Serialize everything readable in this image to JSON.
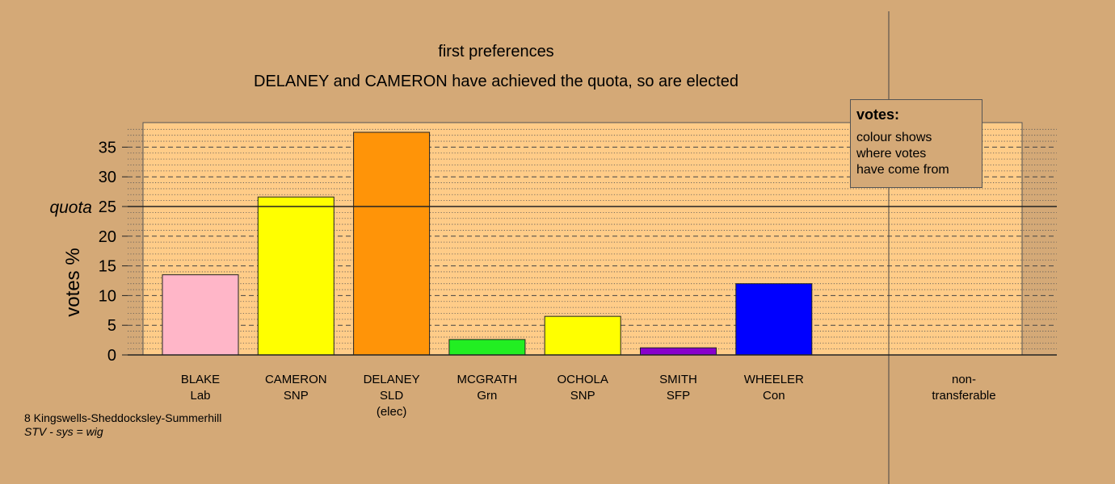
{
  "chart_data": {
    "type": "bar",
    "title": "first preferences",
    "subtitle": "DELANEY and CAMERON have achieved the quota, so are elected",
    "ylabel": "votes %",
    "ylim": [
      0,
      39
    ],
    "yticks": [
      0,
      5,
      10,
      15,
      20,
      25,
      30,
      35
    ],
    "quota": 25,
    "quota_label": "quota",
    "categories": [
      {
        "name": "BLAKE",
        "party": "Lab",
        "note": "",
        "value": 13.5,
        "color": "#ffb6c8"
      },
      {
        "name": "CAMERON",
        "party": "SNP",
        "note": "",
        "value": 26.6,
        "color": "#ffff00"
      },
      {
        "name": "DELANEY",
        "party": "SLD",
        "note": "(elec)",
        "value": 37.5,
        "color": "#ff9408"
      },
      {
        "name": "MCGRATH",
        "party": "Grn",
        "note": "",
        "value": 2.6,
        "color": "#22ee22"
      },
      {
        "name": "OCHOLA",
        "party": "SNP",
        "note": "",
        "value": 6.5,
        "color": "#ffff00"
      },
      {
        "name": "SMITH",
        "party": "SFP",
        "note": "",
        "value": 1.2,
        "color": "#8800cc"
      },
      {
        "name": "WHEELER",
        "party": "Con",
        "note": "",
        "value": 12.0,
        "color": "#0000ff"
      }
    ],
    "non_transferable": {
      "line1": "non-",
      "line2": "transferable",
      "value": 0
    },
    "plot_background": "#ffcc88",
    "grid": true
  },
  "legend": {
    "title": "votes:",
    "lines": [
      "colour shows",
      "where votes",
      "have come from"
    ]
  },
  "footer": {
    "line1": "8 Kingswells-Sheddocksley-Summerhill",
    "line2": "STV - sys = wig"
  }
}
